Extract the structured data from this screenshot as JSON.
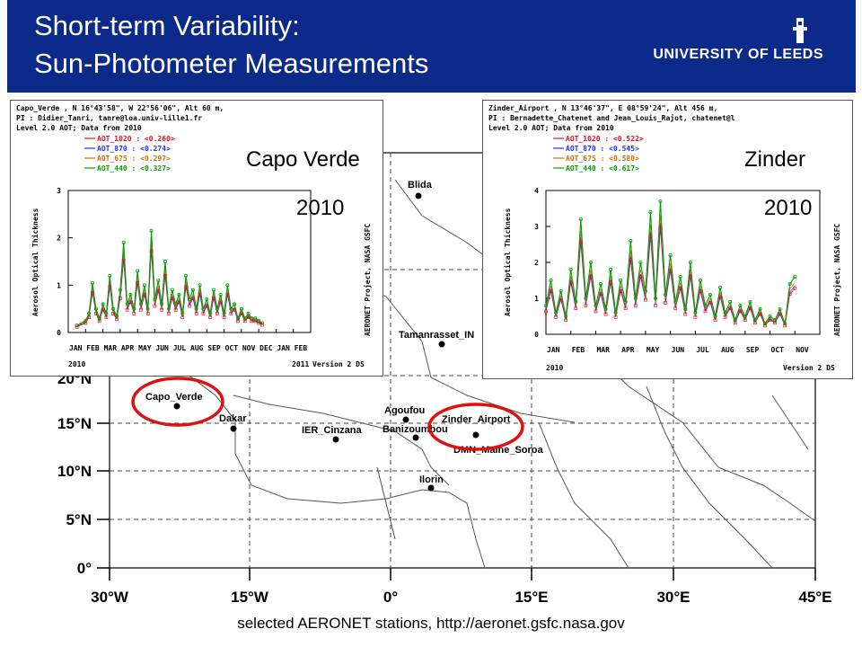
{
  "header": {
    "title_line1": "Short-term Variability:",
    "title_line2": "Sun-Photometer Measurements",
    "university": "UNIVERSITY OF LEEDS"
  },
  "colors": {
    "header_bg": "#0b2a8a",
    "aot_1020": "#e0101e",
    "aot_870": "#2030ff",
    "aot_675": "#d07000",
    "aot_440": "#00a000",
    "circle": "#e01010"
  },
  "map": {
    "lat_labels": [
      "0°",
      "5°N",
      "10°N",
      "15°N",
      "20°N"
    ],
    "lon_labels": [
      "30°W",
      "15°W",
      "0°",
      "15°E",
      "30°E",
      "45°E"
    ],
    "stations": [
      {
        "name": "Blida"
      },
      {
        "name": "Tamanrasset_IN"
      },
      {
        "name": "Capo_Verde"
      },
      {
        "name": "Dakar"
      },
      {
        "name": "IER_Cinzana"
      },
      {
        "name": "Agoufou"
      },
      {
        "name": "Banizoumbou"
      },
      {
        "name": "Zinder_Airport"
      },
      {
        "name": "DMN_Maine_Soroa"
      },
      {
        "name": "Ilorin"
      }
    ],
    "footer": "selected AERONET  stations, http://aeronet.gsfc.nasa.gov"
  },
  "chart_data": [
    {
      "type": "line",
      "site_label": "Capo Verde",
      "year_label": "2010",
      "header_lines": [
        "Capo_Verde , N 16°43'58\", W 22°56'06\", Alt 60 m,",
        "PI : Didier_Tanri, tanre@loa.univ-lille1.fr",
        "Level 2.0 AOT; Data from 2010"
      ],
      "legend": [
        {
          "name": "AOT_1020",
          "mean": "<0.260>"
        },
        {
          "name": "AOT_870",
          "mean": "<0.274>"
        },
        {
          "name": "AOT_675",
          "mean": "<0.297>"
        },
        {
          "name": "AOT_440",
          "mean": "<0.327>"
        }
      ],
      "ylabel": "Aerosol Optical Thickness",
      "right_label": "AERONET Project, NASA GSFC",
      "ylim": [
        0,
        3
      ],
      "yticks": [
        "0",
        "1",
        "2",
        "3"
      ],
      "xticks": [
        "JAN",
        "FEB",
        "MAR",
        "APR",
        "MAY",
        "JUN",
        "JUL",
        "AUG",
        "SEP",
        "OCT",
        "NOV",
        "DEC",
        "JAN",
        "FEB"
      ],
      "x_year_left": "2010",
      "x_year_right": "2011",
      "version": "Version 2 DS",
      "x_months": [
        1.5,
        2.0,
        2.2,
        2.4,
        2.6,
        2.8,
        3.0,
        3.2,
        3.4,
        3.6,
        3.8,
        4.0,
        4.2,
        4.4,
        4.6,
        4.8,
        5.0,
        5.2,
        5.4,
        5.6,
        5.8,
        6.0,
        6.2,
        6.4,
        6.6,
        6.8,
        7.0,
        7.2,
        7.4,
        7.6,
        7.8,
        8.0,
        8.2,
        8.4,
        8.6,
        8.8,
        9.0,
        9.2,
        9.4,
        9.6,
        9.8,
        10.0,
        10.2,
        10.4,
        10.6,
        10.8,
        11.0,
        11.2,
        11.4,
        11.6,
        11.8,
        12.0,
        12.2
      ],
      "series": [
        {
          "name": "AOT_440",
          "values": [
            0.15,
            0.25,
            0.4,
            1.05,
            0.5,
            0.3,
            0.6,
            0.4,
            1.2,
            0.5,
            0.35,
            0.9,
            1.9,
            0.6,
            0.8,
            0.5,
            1.3,
            0.6,
            1.0,
            0.5,
            2.15,
            0.7,
            1.1,
            0.6,
            1.5,
            0.5,
            0.9,
            0.6,
            0.8,
            0.4,
            1.2,
            0.7,
            0.9,
            0.5,
            1.0,
            0.5,
            0.7,
            0.4,
            0.9,
            0.5,
            0.8,
            0.4,
            1.0,
            0.5,
            0.6,
            0.3,
            0.5,
            0.3,
            0.4,
            0.3,
            0.3,
            0.25,
            0.2
          ]
        }
      ]
    },
    {
      "type": "line",
      "site_label": "Zinder",
      "year_label": "2010",
      "header_lines": [
        "Zinder_Airport , N 13°46'37\", E 08°59'24\", Alt 456 m,",
        "PI : Bernadette_Chatenet and Jean_Louis_Rajot, chatenet@l",
        "Level 2.0 AOT; Data from 2010"
      ],
      "legend": [
        {
          "name": "AOT_1020",
          "mean": "<0.522>"
        },
        {
          "name": "AOT_870",
          "mean": "<0.545>"
        },
        {
          "name": "AOT_675",
          "mean": "<0.580>"
        },
        {
          "name": "AOT_440",
          "mean": "<0.617>"
        }
      ],
      "ylabel": "Aerosol Optical Thickness",
      "right_label": "AERONET Project, NASA GSFC",
      "ylim": [
        0,
        4
      ],
      "yticks": [
        "0",
        "1",
        "2",
        "3",
        "4"
      ],
      "xticks": [
        "JAN",
        "FEB",
        "MAR",
        "APR",
        "MAY",
        "JUN",
        "JUL",
        "AUG",
        "SEP",
        "OCT",
        "NOV"
      ],
      "x_year_left": "2010",
      "version": "Version 2 DS",
      "x_months": [
        1.0,
        1.2,
        1.4,
        1.6,
        1.8,
        2.0,
        2.2,
        2.4,
        2.6,
        2.8,
        3.0,
        3.2,
        3.4,
        3.6,
        3.8,
        4.0,
        4.2,
        4.4,
        4.6,
        4.8,
        5.0,
        5.2,
        5.4,
        5.6,
        5.8,
        6.0,
        6.2,
        6.4,
        6.6,
        6.8,
        7.0,
        7.2,
        7.4,
        7.6,
        7.8,
        8.0,
        8.2,
        8.4,
        8.6,
        8.8,
        9.0,
        9.2,
        9.4,
        9.6,
        9.8,
        10.0,
        10.2,
        10.4,
        10.6,
        10.8,
        11.0
      ],
      "series": [
        {
          "name": "AOT_440",
          "values": [
            0.8,
            1.5,
            0.6,
            1.2,
            0.5,
            1.8,
            0.9,
            3.2,
            1.0,
            2.0,
            0.8,
            1.4,
            0.7,
            1.8,
            0.6,
            1.5,
            0.9,
            2.6,
            1.0,
            2.0,
            1.2,
            3.4,
            1.0,
            3.7,
            1.1,
            2.2,
            0.9,
            1.6,
            0.7,
            2.0,
            0.6,
            1.5,
            0.8,
            1.1,
            0.5,
            1.3,
            0.6,
            0.9,
            0.4,
            0.8,
            0.5,
            0.9,
            0.4,
            0.7,
            0.3,
            0.5,
            0.4,
            0.7,
            0.3,
            1.4,
            1.6
          ]
        }
      ]
    }
  ]
}
